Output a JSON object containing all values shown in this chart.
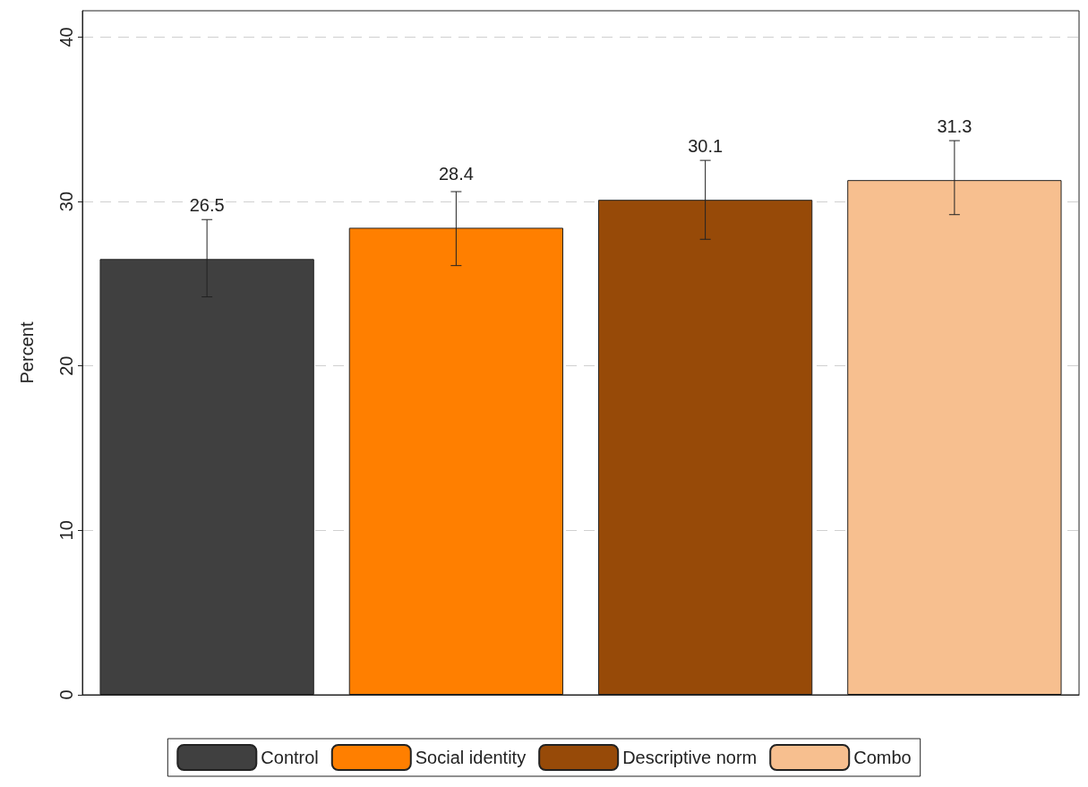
{
  "chart_data": {
    "type": "bar",
    "ylabel": "Percent",
    "categories": [
      null,
      null,
      null,
      null
    ],
    "series": [
      {
        "name": "Control",
        "color": "#404040",
        "values": [
          26.5,
          null,
          null,
          null
        ],
        "errors": [
          [
            24.2,
            28.9
          ],
          null,
          null,
          null
        ]
      },
      {
        "name": "Social identity",
        "color": "#ff7f00",
        "values": [
          null,
          28.4,
          null,
          null
        ],
        "errors": [
          null,
          [
            26.1,
            30.6
          ],
          null,
          null
        ]
      },
      {
        "name": "Descriptive norm",
        "color": "#974a08",
        "values": [
          null,
          null,
          30.1,
          null
        ],
        "errors": [
          null,
          null,
          [
            27.7,
            32.5
          ],
          null
        ]
      },
      {
        "name": "Combo",
        "color": "#f7bf8f",
        "values": [
          null,
          null,
          null,
          31.3
        ],
        "errors": [
          null,
          null,
          null,
          [
            29.2,
            33.7
          ]
        ]
      }
    ],
    "stacked": true,
    "data_labels": true,
    "ylim": [
      0,
      41.6
    ],
    "yticks": [
      0,
      10,
      20,
      30,
      40
    ],
    "grid": "y",
    "legend": "bottom"
  }
}
